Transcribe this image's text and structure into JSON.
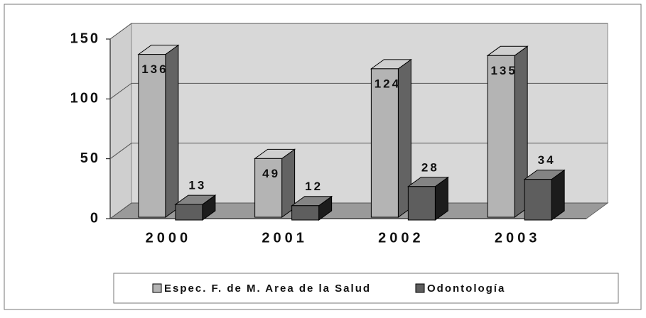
{
  "chart_data": {
    "type": "bar3d",
    "categories": [
      "2000",
      "2001",
      "2002",
      "2003"
    ],
    "series": [
      {
        "name": "Espec. F. de M. Area de la Salud",
        "color": "#b4b4b4",
        "values": [
          136,
          49,
          124,
          135
        ]
      },
      {
        "name": "Odontología",
        "color": "#5e5e5e",
        "values": [
          13,
          12,
          28,
          34
        ]
      }
    ],
    "ylim": [
      0,
      150
    ],
    "yticks": [
      0,
      50,
      100,
      150
    ],
    "grid": true,
    "legend": "bottom"
  }
}
